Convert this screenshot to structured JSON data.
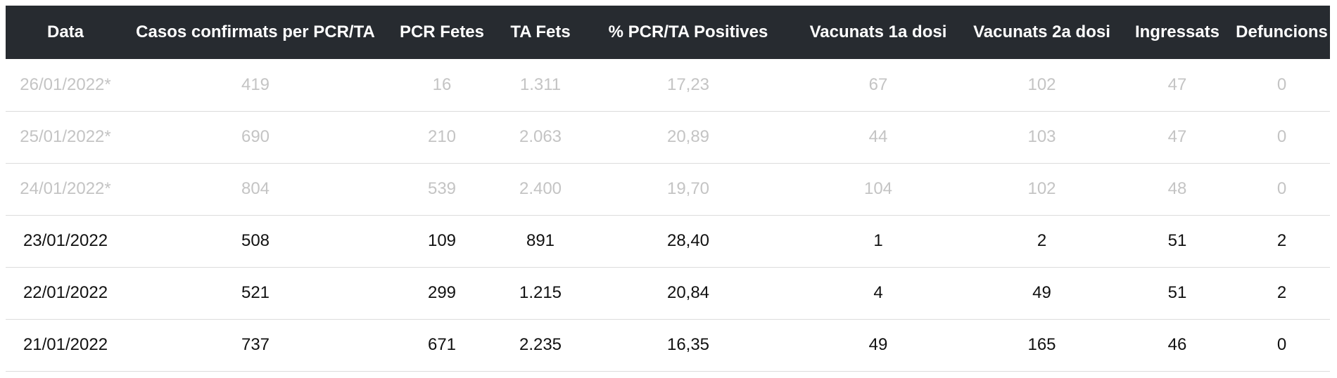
{
  "table": {
    "columns": [
      "Data",
      "Casos confirmats per PCR/TA",
      "PCR Fetes",
      "TA Fets",
      "% PCR/TA Positives",
      "Vacunats 1a dosi",
      "Vacunats 2a dosi",
      "Ingressats",
      "Defuncions"
    ],
    "rows": [
      {
        "provisional": true,
        "cells": [
          "26/01/2022*",
          "419",
          "16",
          "1.311",
          "17,23",
          "67",
          "102",
          "47",
          "0"
        ]
      },
      {
        "provisional": true,
        "cells": [
          "25/01/2022*",
          "690",
          "210",
          "2.063",
          "20,89",
          "44",
          "103",
          "47",
          "0"
        ]
      },
      {
        "provisional": true,
        "cells": [
          "24/01/2022*",
          "804",
          "539",
          "2.400",
          "19,70",
          "104",
          "102",
          "48",
          "0"
        ]
      },
      {
        "provisional": false,
        "cells": [
          "23/01/2022",
          "508",
          "109",
          "891",
          "28,40",
          "1",
          "2",
          "51",
          "2"
        ]
      },
      {
        "provisional": false,
        "cells": [
          "22/01/2022",
          "521",
          "299",
          "1.215",
          "20,84",
          "4",
          "49",
          "51",
          "2"
        ]
      },
      {
        "provisional": false,
        "cells": [
          "21/01/2022",
          "737",
          "671",
          "2.235",
          "16,35",
          "49",
          "165",
          "46",
          "0"
        ]
      }
    ]
  },
  "colors": {
    "header_bg": "#272b30",
    "header_text": "#ffffff",
    "provisional_text": "#c4c4c4",
    "normal_text": "#111111",
    "row_divider": "#dcdcdc"
  }
}
